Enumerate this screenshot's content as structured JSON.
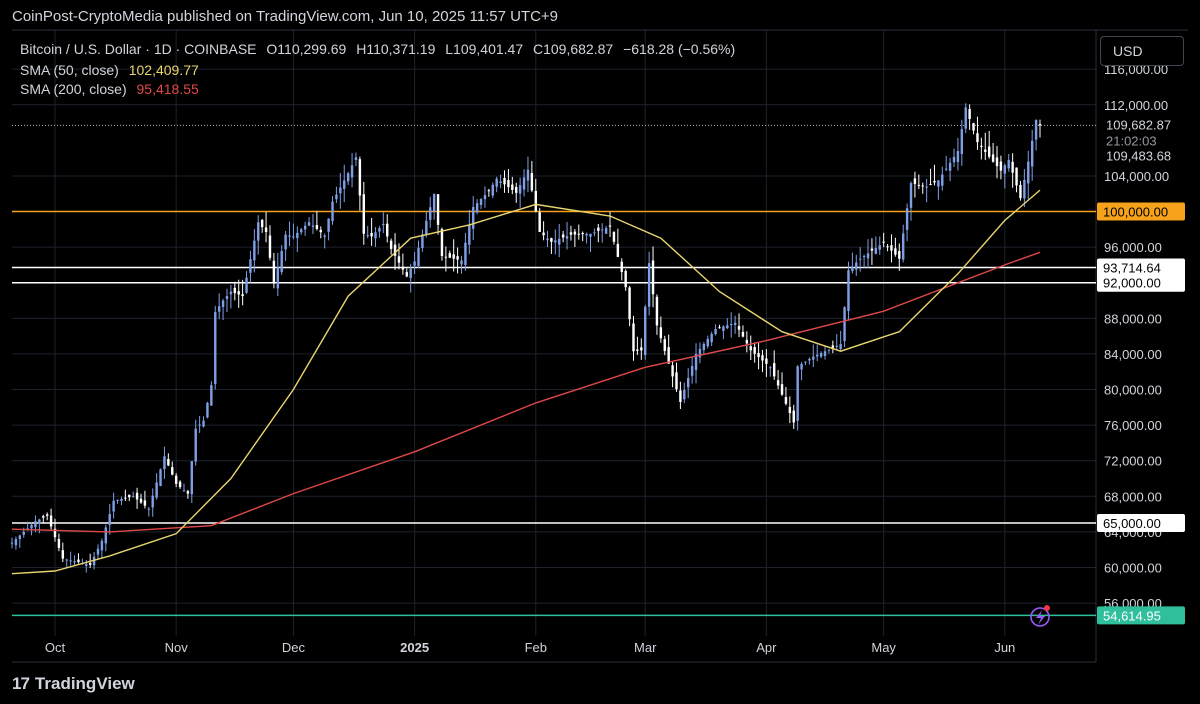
{
  "header": {
    "published_line": "CoinPost-CryptoMedia published on TradingView.com, Jun 10, 2025 11:57 UTC+9"
  },
  "legend": {
    "symbol": "Bitcoin / U.S. Dollar · 1D · COINBASE",
    "open": "O110,299.69",
    "high": "H110,371.19",
    "low": "L109,401.47",
    "close": "C109,682.87",
    "change": "−618.28 (−0.56%)",
    "sma50_label": "SMA (50, close)",
    "sma50_value": "102,409.77",
    "sma200_label": "SMA (200, close)",
    "sma200_value": "95,418.55"
  },
  "currency_button": "USD",
  "footer": {
    "logo_mark": "17",
    "logo_text": "TradingView"
  },
  "colors": {
    "background": "#000000",
    "candle": "#7e9fe6",
    "sma50": "#e8d56e",
    "sma200": "#e04848",
    "orange_line": "#f7a21b",
    "white_line": "#ffffff",
    "teal_line": "#2fbf9a",
    "grid": "#1e222d"
  },
  "chart_data": {
    "type": "candlestick",
    "y_axis": {
      "min": 53200,
      "max": 120400,
      "tick_labels": [
        "116,000.00",
        "112,000.00",
        "104,000.00",
        "96,000.00",
        "88,000.00",
        "84,000.00",
        "80,000.00",
        "76,000.00",
        "72,000.00",
        "68,000.00",
        "64,000.00",
        "60,000.00",
        "56,000.00"
      ]
    },
    "x_axis": {
      "start": "2024-09-20",
      "end": "2025-06-10",
      "tick_labels": [
        {
          "label": "Oct",
          "date": "2024-10-01",
          "bold": false
        },
        {
          "label": "Nov",
          "date": "2024-11-01",
          "bold": false
        },
        {
          "label": "Dec",
          "date": "2024-12-01",
          "bold": false
        },
        {
          "label": "2025",
          "date": "2025-01-01",
          "bold": true
        },
        {
          "label": "Feb",
          "date": "2025-02-01",
          "bold": false
        },
        {
          "label": "Mar",
          "date": "2025-03-01",
          "bold": false
        },
        {
          "label": "Apr",
          "date": "2025-04-01",
          "bold": false
        },
        {
          "label": "May",
          "date": "2025-05-01",
          "bold": false
        },
        {
          "label": "Jun",
          "date": "2025-06-01",
          "bold": false
        }
      ]
    },
    "close_series": [
      [
        "2024-09-20",
        62800
      ],
      [
        "2024-09-26",
        65200
      ],
      [
        "2024-09-29",
        65800
      ],
      [
        "2024-10-03",
        61000
      ],
      [
        "2024-10-10",
        60300
      ],
      [
        "2024-10-13",
        63000
      ],
      [
        "2024-10-16",
        67500
      ],
      [
        "2024-10-21",
        68000
      ],
      [
        "2024-10-25",
        66600
      ],
      [
        "2024-10-29",
        72500
      ],
      [
        "2024-11-01",
        69400
      ],
      [
        "2024-11-04",
        68300
      ],
      [
        "2024-11-06",
        75600
      ],
      [
        "2024-11-08",
        76500
      ],
      [
        "2024-11-10",
        80500
      ],
      [
        "2024-11-11",
        88700
      ],
      [
        "2024-11-13",
        90000
      ],
      [
        "2024-11-15",
        91000
      ],
      [
        "2024-11-18",
        90500
      ],
      [
        "2024-11-22",
        98800
      ],
      [
        "2024-11-24",
        97700
      ],
      [
        "2024-11-26",
        91900
      ],
      [
        "2024-11-29",
        97400
      ],
      [
        "2024-12-01",
        97200
      ],
      [
        "2024-12-05",
        98800
      ],
      [
        "2024-12-09",
        97300
      ],
      [
        "2024-12-11",
        101100
      ],
      [
        "2024-12-15",
        104300
      ],
      [
        "2024-12-17",
        106100
      ],
      [
        "2024-12-19",
        97500
      ],
      [
        "2024-12-21",
        97200
      ],
      [
        "2024-12-24",
        98600
      ],
      [
        "2024-12-26",
        95800
      ],
      [
        "2024-12-30",
        92700
      ],
      [
        "2025-01-01",
        94400
      ],
      [
        "2025-01-06",
        102000
      ],
      [
        "2025-01-08",
        95000
      ],
      [
        "2025-01-13",
        94500
      ],
      [
        "2025-01-16",
        100500
      ],
      [
        "2025-01-20",
        102300
      ],
      [
        "2025-01-22",
        103700
      ],
      [
        "2025-01-27",
        102100
      ],
      [
        "2025-01-30",
        104700
      ],
      [
        "2025-02-02",
        97700
      ],
      [
        "2025-02-05",
        96600
      ],
      [
        "2025-02-10",
        97400
      ],
      [
        "2025-02-15",
        97500
      ],
      [
        "2025-02-20",
        98300
      ],
      [
        "2025-02-24",
        91500
      ],
      [
        "2025-02-26",
        84300
      ],
      [
        "2025-02-28",
        84400
      ],
      [
        "2025-03-02",
        94200
      ],
      [
        "2025-03-04",
        87200
      ],
      [
        "2025-03-10",
        78600
      ],
      [
        "2025-03-14",
        84000
      ],
      [
        "2025-03-19",
        86800
      ],
      [
        "2025-03-24",
        87500
      ],
      [
        "2025-03-28",
        84400
      ],
      [
        "2025-04-02",
        82500
      ],
      [
        "2025-04-06",
        78400
      ],
      [
        "2025-04-08",
        76300
      ],
      [
        "2025-04-09",
        82600
      ],
      [
        "2025-04-13",
        83700
      ],
      [
        "2025-04-20",
        85100
      ],
      [
        "2025-04-22",
        93400
      ],
      [
        "2025-04-25",
        94700
      ],
      [
        "2025-05-01",
        96500
      ],
      [
        "2025-05-05",
        94700
      ],
      [
        "2025-05-08",
        103200
      ],
      [
        "2025-05-12",
        102800
      ],
      [
        "2025-05-15",
        103500
      ],
      [
        "2025-05-20",
        106800
      ],
      [
        "2025-05-22",
        111700
      ],
      [
        "2025-05-25",
        107800
      ],
      [
        "2025-05-29",
        105600
      ],
      [
        "2025-05-31",
        104600
      ],
      [
        "2025-06-02",
        105800
      ],
      [
        "2025-06-05",
        101500
      ],
      [
        "2025-06-07",
        105600
      ],
      [
        "2025-06-09",
        110300
      ],
      [
        "2025-06-10",
        109682.87
      ]
    ],
    "sma50": [
      [
        "2024-09-20",
        59300
      ],
      [
        "2024-10-01",
        59600
      ],
      [
        "2024-10-15",
        61300
      ],
      [
        "2024-11-01",
        63800
      ],
      [
        "2024-11-15",
        70000
      ],
      [
        "2024-12-01",
        80000
      ],
      [
        "2024-12-15",
        90500
      ],
      [
        "2024-12-31",
        97000
      ],
      [
        "2025-01-15",
        98500
      ],
      [
        "2025-02-01",
        100800
      ],
      [
        "2025-02-20",
        99500
      ],
      [
        "2025-03-05",
        97000
      ],
      [
        "2025-03-20",
        91000
      ],
      [
        "2025-04-05",
        86500
      ],
      [
        "2025-04-20",
        84300
      ],
      [
        "2025-05-05",
        86500
      ],
      [
        "2025-05-20",
        93000
      ],
      [
        "2025-06-01",
        99000
      ],
      [
        "2025-06-10",
        102409.77
      ]
    ],
    "sma200": [
      [
        "2024-09-20",
        64300
      ],
      [
        "2024-10-15",
        64000
      ],
      [
        "2024-11-10",
        64700
      ],
      [
        "2024-12-01",
        68300
      ],
      [
        "2025-01-01",
        73000
      ],
      [
        "2025-02-01",
        78500
      ],
      [
        "2025-03-01",
        82500
      ],
      [
        "2025-04-01",
        85500
      ],
      [
        "2025-05-01",
        88800
      ],
      [
        "2025-06-01",
        94000
      ],
      [
        "2025-06-10",
        95418.55
      ]
    ],
    "horizontal_lines": [
      {
        "value": 100000,
        "color": "#f7a21b",
        "label": "100,000.00"
      },
      {
        "value": 93714.64,
        "color": "#ffffff",
        "label": "93,714.64"
      },
      {
        "value": 92000,
        "color": "#ffffff",
        "label": "92,000.00"
      },
      {
        "value": 65000,
        "color": "#ffffff",
        "label": "65,000.00"
      },
      {
        "value": 54614.95,
        "color": "#2fbf9a",
        "label": "54,614.95"
      }
    ],
    "last_price": {
      "value": 109682.87,
      "label": "109,682.87",
      "countdown": "21:02:03"
    },
    "ref_price": {
      "value": 109483.68,
      "label": "109,483.68"
    }
  }
}
